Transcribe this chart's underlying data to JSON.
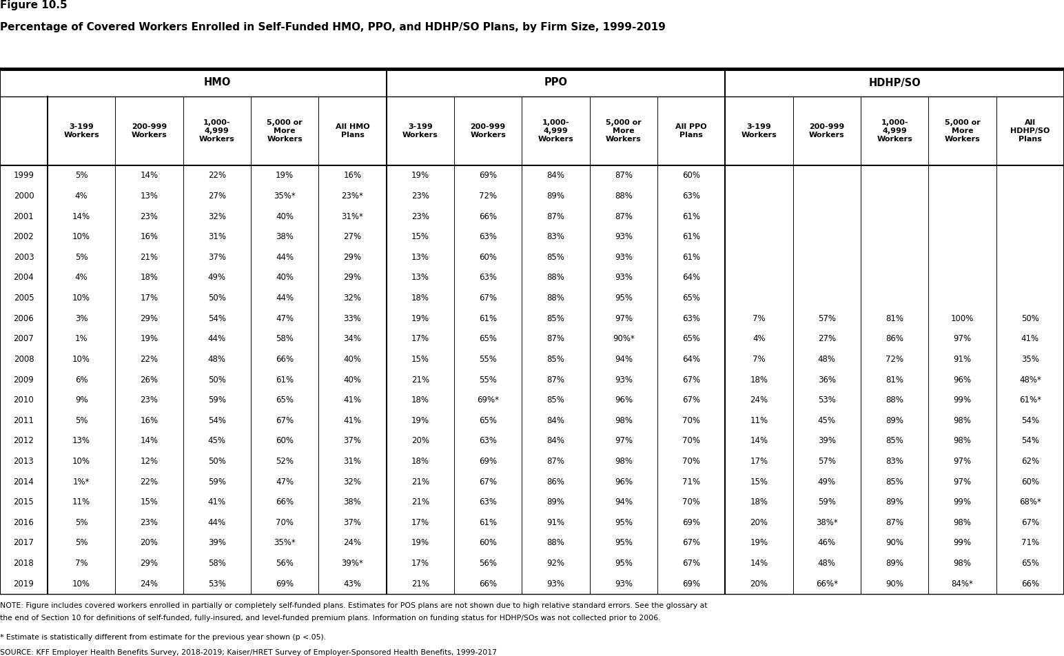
{
  "figure_label": "Figure 10.5",
  "title": "Percentage of Covered Workers Enrolled in Self-Funded HMO, PPO, and HDHP/SO Plans, by Firm Size, 1999-2019",
  "years": [
    1999,
    2000,
    2001,
    2002,
    2003,
    2004,
    2005,
    2006,
    2007,
    2008,
    2009,
    2010,
    2011,
    2012,
    2013,
    2014,
    2015,
    2016,
    2017,
    2018,
    2019
  ],
  "data": [
    [
      "5%",
      "14%",
      "22%",
      "19%",
      "16%",
      "19%",
      "69%",
      "84%",
      "87%",
      "60%",
      "",
      "",
      "",
      "",
      ""
    ],
    [
      "4%",
      "13%",
      "27%",
      "35%*",
      "23%*",
      "23%",
      "72%",
      "89%",
      "88%",
      "63%",
      "",
      "",
      "",
      "",
      ""
    ],
    [
      "14%",
      "23%",
      "32%",
      "40%",
      "31%*",
      "23%",
      "66%",
      "87%",
      "87%",
      "61%",
      "",
      "",
      "",
      "",
      ""
    ],
    [
      "10%",
      "16%",
      "31%",
      "38%",
      "27%",
      "15%",
      "63%",
      "83%",
      "93%",
      "61%",
      "",
      "",
      "",
      "",
      ""
    ],
    [
      "5%",
      "21%",
      "37%",
      "44%",
      "29%",
      "13%",
      "60%",
      "85%",
      "93%",
      "61%",
      "",
      "",
      "",
      "",
      ""
    ],
    [
      "4%",
      "18%",
      "49%",
      "40%",
      "29%",
      "13%",
      "63%",
      "88%",
      "93%",
      "64%",
      "",
      "",
      "",
      "",
      ""
    ],
    [
      "10%",
      "17%",
      "50%",
      "44%",
      "32%",
      "18%",
      "67%",
      "88%",
      "95%",
      "65%",
      "",
      "",
      "",
      "",
      ""
    ],
    [
      "3%",
      "29%",
      "54%",
      "47%",
      "33%",
      "19%",
      "61%",
      "85%",
      "97%",
      "63%",
      "7%",
      "57%",
      "81%",
      "100%",
      "50%"
    ],
    [
      "1%",
      "19%",
      "44%",
      "58%",
      "34%",
      "17%",
      "65%",
      "87%",
      "90%*",
      "65%",
      "4%",
      "27%",
      "86%",
      "97%",
      "41%"
    ],
    [
      "10%",
      "22%",
      "48%",
      "66%",
      "40%",
      "15%",
      "55%",
      "85%",
      "94%",
      "64%",
      "7%",
      "48%",
      "72%",
      "91%",
      "35%"
    ],
    [
      "6%",
      "26%",
      "50%",
      "61%",
      "40%",
      "21%",
      "55%",
      "87%",
      "93%",
      "67%",
      "18%",
      "36%",
      "81%",
      "96%",
      "48%*"
    ],
    [
      "9%",
      "23%",
      "59%",
      "65%",
      "41%",
      "18%",
      "69%*",
      "85%",
      "96%",
      "67%",
      "24%",
      "53%",
      "88%",
      "99%",
      "61%*"
    ],
    [
      "5%",
      "16%",
      "54%",
      "67%",
      "41%",
      "19%",
      "65%",
      "84%",
      "98%",
      "70%",
      "11%",
      "45%",
      "89%",
      "98%",
      "54%"
    ],
    [
      "13%",
      "14%",
      "45%",
      "60%",
      "37%",
      "20%",
      "63%",
      "84%",
      "97%",
      "70%",
      "14%",
      "39%",
      "85%",
      "98%",
      "54%"
    ],
    [
      "10%",
      "12%",
      "50%",
      "52%",
      "31%",
      "18%",
      "69%",
      "87%",
      "98%",
      "70%",
      "17%",
      "57%",
      "83%",
      "97%",
      "62%"
    ],
    [
      "1%*",
      "22%",
      "59%",
      "47%",
      "32%",
      "21%",
      "67%",
      "86%",
      "96%",
      "71%",
      "15%",
      "49%",
      "85%",
      "97%",
      "60%"
    ],
    [
      "11%",
      "15%",
      "41%",
      "66%",
      "38%",
      "21%",
      "63%",
      "89%",
      "94%",
      "70%",
      "18%",
      "59%",
      "89%",
      "99%",
      "68%*"
    ],
    [
      "5%",
      "23%",
      "44%",
      "70%",
      "37%",
      "17%",
      "61%",
      "91%",
      "95%",
      "69%",
      "20%",
      "38%*",
      "87%",
      "98%",
      "67%"
    ],
    [
      "5%",
      "20%",
      "39%",
      "35%*",
      "24%",
      "19%",
      "60%",
      "88%",
      "95%",
      "67%",
      "19%",
      "46%",
      "90%",
      "99%",
      "71%"
    ],
    [
      "7%",
      "29%",
      "58%",
      "56%",
      "39%*",
      "17%",
      "56%",
      "92%",
      "95%",
      "67%",
      "14%",
      "48%",
      "89%",
      "98%",
      "65%"
    ],
    [
      "10%",
      "24%",
      "53%",
      "69%",
      "43%",
      "21%",
      "66%",
      "93%",
      "93%",
      "69%",
      "20%",
      "66%*",
      "90%",
      "84%*",
      "66%"
    ]
  ],
  "note_line1": "NOTE: Figure includes covered workers enrolled in partially or completely self-funded plans. Estimates for POS plans are not shown due to high relative standard errors. See the glossary at",
  "note_line2": "the end of Section 10 for definitions of self-funded, fully-insured, and level-funded premium plans. Information on funding status for HDHP/SOs was not collected prior to 2006.",
  "note_line3": "* Estimate is statistically different from estimate for the previous year shown (p <.05).",
  "note_line4": "SOURCE: KFF Employer Health Benefits Survey, 2018-2019; Kaiser/HRET Survey of Employer-Sponsored Health Benefits, 1999-2017",
  "col_headers": [
    "",
    "3-199\nWorkers",
    "200-999\nWorkers",
    "1,000-\n4,999\nWorkers",
    "5,000 or\nMore\nWorkers",
    "All HMO\nPlans",
    "3-199\nWorkers",
    "200-999\nWorkers",
    "1,000-\n4,999\nWorkers",
    "5,000 or\nMore\nWorkers",
    "All PPO\nPlans",
    "3-199\nWorkers",
    "200-999\nWorkers",
    "1,000-\n4,999\nWorkers",
    "5,000 or\nMore\nWorkers",
    "All\nHDHP/SO\nPlans"
  ]
}
